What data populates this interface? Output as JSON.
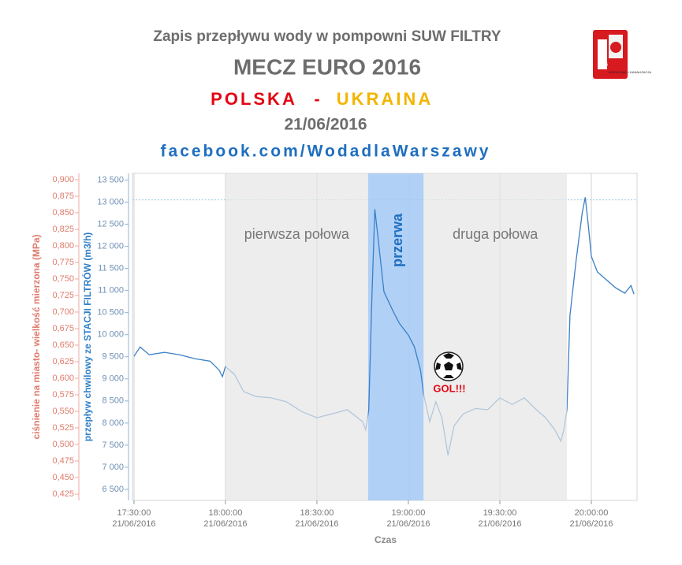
{
  "chart_data": {
    "type": "line",
    "title": "Zapis przepływu wody w pompowni SUW FILTRY",
    "subtitle": "MECZ EURO 2016",
    "team_home": "POLSKA",
    "separator": "-",
    "team_away": "UKRAINA",
    "date": "21/06/2016",
    "link": "facebook.com/WodadlaWarszawy",
    "logo_text": "WODOCIĄGI I KANALIZACJA",
    "logo_year": "1886",
    "x_label": "Czas",
    "y_label": "przepływ chwilowy ze STACJI FILTRÓW (m3/h)",
    "y2_label": "ciśnienie na miasto- wielkość mierzona (MPa)",
    "xlim": [
      "17:29:30",
      "20:15:00"
    ],
    "xticks": [
      {
        "value": "17:30:00",
        "label": [
          "17:30:00",
          "21/06/2016"
        ]
      },
      {
        "value": "18:00:00",
        "label": [
          "18:00:00",
          "21/06/2016"
        ]
      },
      {
        "value": "18:30:00",
        "label": [
          "18:30:00",
          "21/06/2016"
        ]
      },
      {
        "value": "19:00:00",
        "label": [
          "19:00:00",
          "21/06/2016"
        ]
      },
      {
        "value": "19:30:00",
        "label": [
          "19:30:00",
          "21/06/2016"
        ]
      },
      {
        "value": "20:00:00",
        "label": [
          "20:00:00",
          "21/06/2016"
        ]
      }
    ],
    "ylim": [
      6250,
      13650
    ],
    "yticks": [
      {
        "value": 6500,
        "label": "6 500"
      },
      {
        "value": 7000,
        "label": "7 000"
      },
      {
        "value": 7500,
        "label": "7 500"
      },
      {
        "value": 8000,
        "label": "8 000"
      },
      {
        "value": 8500,
        "label": "8 500"
      },
      {
        "value": 9000,
        "label": "9 000"
      },
      {
        "value": 9500,
        "label": "9 500"
      },
      {
        "value": 10000,
        "label": "10 000"
      },
      {
        "value": 10500,
        "label": "10 500"
      },
      {
        "value": 11000,
        "label": "11 000"
      },
      {
        "value": 11500,
        "label": "11 500"
      },
      {
        "value": 12000,
        "label": "12 000"
      },
      {
        "value": 12500,
        "label": "12 500"
      },
      {
        "value": 13000,
        "label": "13 000"
      },
      {
        "value": 13500,
        "label": "13 500"
      }
    ],
    "y2lim": [
      0.4155,
      0.9095
    ],
    "y2ticks": [
      {
        "value": 0.425,
        "label": "0,425"
      },
      {
        "value": 0.45,
        "label": "0,450"
      },
      {
        "value": 0.475,
        "label": "0,475"
      },
      {
        "value": 0.5,
        "label": "0,500"
      },
      {
        "value": 0.525,
        "label": "0,525"
      },
      {
        "value": 0.55,
        "label": "0,550"
      },
      {
        "value": 0.575,
        "label": "0,575"
      },
      {
        "value": 0.6,
        "label": "0,600"
      },
      {
        "value": 0.625,
        "label": "0,625"
      },
      {
        "value": 0.65,
        "label": "0,650"
      },
      {
        "value": 0.675,
        "label": "0,675"
      },
      {
        "value": 0.7,
        "label": "0,700"
      },
      {
        "value": 0.725,
        "label": "0,725"
      },
      {
        "value": 0.75,
        "label": "0,750"
      },
      {
        "value": 0.775,
        "label": "0,775"
      },
      {
        "value": 0.8,
        "label": "0,800"
      },
      {
        "value": 0.825,
        "label": "0,825"
      },
      {
        "value": 0.85,
        "label": "0,850"
      },
      {
        "value": 0.875,
        "label": "0,875"
      },
      {
        "value": 0.9,
        "label": "0,900"
      }
    ],
    "xgrid": true,
    "reference_line": 13050,
    "reference_color": "#9ccbe8",
    "periods": [
      {
        "name": "pierwsza połowa",
        "start": "18:00:00",
        "end": "18:46:45",
        "color": "#e6e6e6"
      },
      {
        "name": "przerwa",
        "start": "18:46:45",
        "end": "19:05:00",
        "color": "#a9cbf5"
      },
      {
        "name": "druga połowa",
        "start": "19:05:00",
        "end": "19:52:00",
        "color": "#e6e6e6"
      }
    ],
    "annotation": "GOL!!!",
    "x": [
      "17:30:00",
      "17:32:00",
      "17:35:00",
      "17:40:00",
      "17:45:00",
      "17:50:00",
      "17:55:00",
      "17:58:00",
      "17:59:00",
      "18:00:00",
      "18:03:00",
      "18:06:00",
      "18:10:00",
      "18:15:00",
      "18:20:00",
      "18:25:00",
      "18:30:00",
      "18:35:00",
      "18:40:00",
      "18:45:00",
      "18:46:00",
      "18:47:00",
      "18:48:00",
      "18:49:00",
      "18:50:00",
      "18:52:00",
      "18:55:00",
      "18:57:00",
      "19:00:00",
      "19:02:00",
      "19:04:00",
      "19:05:00",
      "19:07:00",
      "19:09:00",
      "19:11:00",
      "19:13:00",
      "19:15:00",
      "19:18:00",
      "19:22:00",
      "19:26:00",
      "19:30:00",
      "19:34:00",
      "19:38:00",
      "19:42:00",
      "19:45:00",
      "19:48:00",
      "19:50:00",
      "19:51:00",
      "19:52:00",
      "19:53:00",
      "19:55:00",
      "19:57:00",
      "19:58:00",
      "19:59:00",
      "20:00:00",
      "20:02:00",
      "20:05:00",
      "20:08:00",
      "20:11:00",
      "20:13:00",
      "20:14:00"
    ],
    "series": [
      {
        "name": "przepływ chwilowy",
        "color": "#3a80c6",
        "values": [
          9510,
          9720,
          9545,
          9600,
          9545,
          9455,
          9400,
          9190,
          9050,
          9280,
          9100,
          8710,
          8600,
          8570,
          8480,
          8260,
          8120,
          8210,
          8300,
          8030,
          7850,
          8300,
          10790,
          12840,
          12220,
          10970,
          10530,
          10260,
          9990,
          9720,
          9190,
          8650,
          8030,
          8480,
          8120,
          7270,
          7940,
          8210,
          8330,
          8300,
          8570,
          8420,
          8570,
          8300,
          8120,
          7850,
          7590,
          7850,
          8300,
          10440,
          11680,
          12750,
          13110,
          12490,
          11770,
          11420,
          11240,
          11060,
          10940,
          11110,
          10920
        ]
      }
    ]
  }
}
